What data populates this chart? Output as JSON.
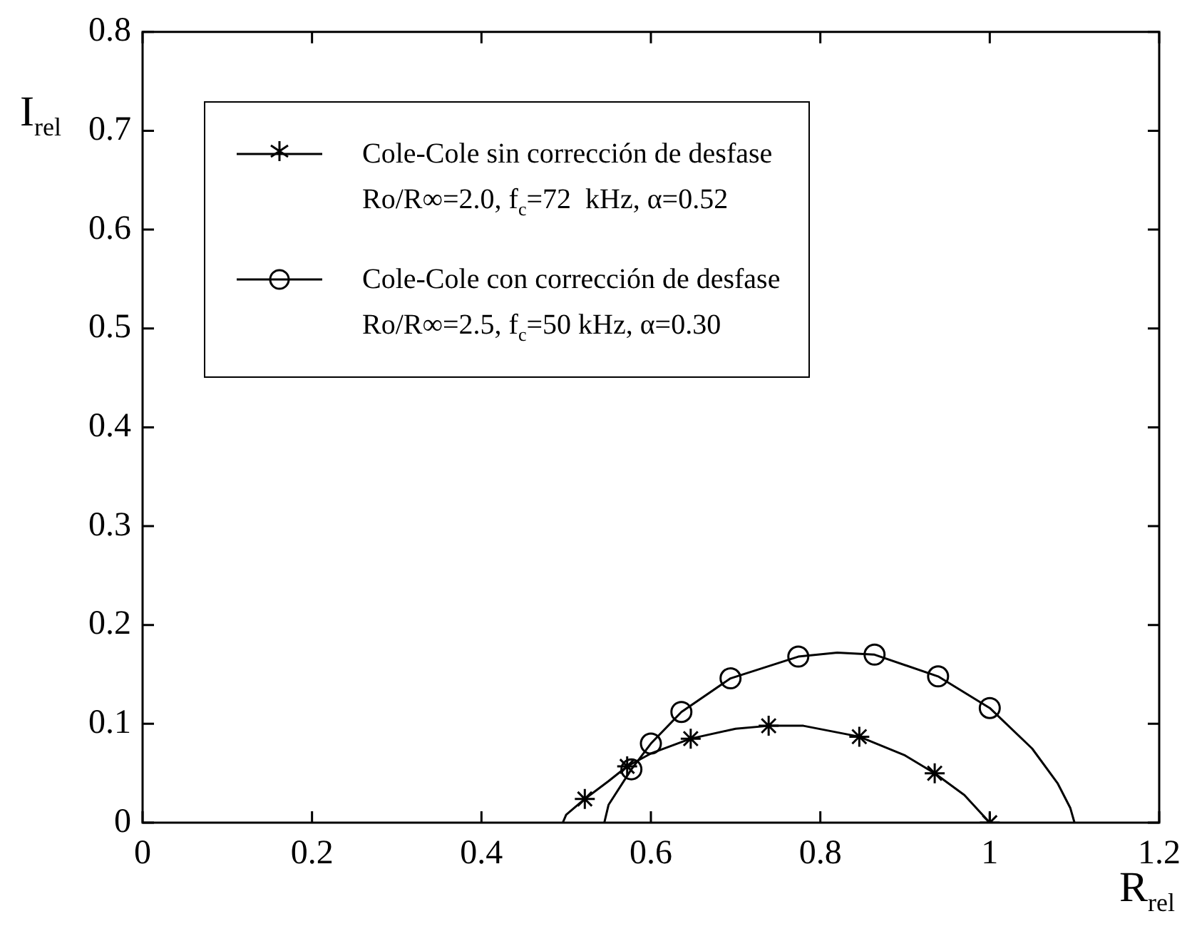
{
  "chart_data": {
    "type": "line",
    "xlabel": "R$_{rel}$",
    "ylabel": "I$_{rel}$",
    "xlim": [
      0,
      1.2
    ],
    "xticks": [
      0,
      0.2,
      0.4,
      0.6,
      0.8,
      1,
      1.2
    ],
    "ylim": [
      0,
      0.8
    ],
    "yticks": [
      0,
      0.1,
      0.2,
      0.3,
      0.4,
      0.5,
      0.6,
      0.7,
      0.8
    ],
    "legend": "top left",
    "series": [
      {
        "color": "#000000",
        "marker": "none",
        "x": [
          0.496,
          0.5,
          0.522,
          0.55,
          0.572,
          0.6,
          0.647,
          0.7,
          0.739,
          0.78,
          0.846,
          0.9,
          0.935,
          0.97,
          1.0
        ],
        "values": [
          0,
          0.008,
          0.024,
          0.042,
          0.057,
          0.07,
          0.085,
          0.095,
          0.098,
          0.098,
          0.087,
          0.068,
          0.05,
          0.028,
          0
        ]
      },
      {
        "color": "#000000",
        "marker": "none",
        "x": [
          0.545,
          0.55,
          0.577,
          0.6,
          0.636,
          0.694,
          0.774,
          0.82,
          0.864,
          0.939,
          1.0,
          1.05,
          1.08,
          1.095,
          1.1
        ],
        "values": [
          0,
          0.018,
          0.054,
          0.08,
          0.112,
          0.146,
          0.168,
          0.172,
          0.17,
          0.148,
          0.116,
          0.075,
          0.04,
          0.015,
          0
        ]
      },
      {
        "type": "scatter",
        "name": "Cole-Cole sin corrección de desfase\nRo/R∞=2.0, f$_{c}$=72  kHz, α=0.52",
        "color": "#000000",
        "marker": "cross",
        "x": [
          0.522,
          0.572,
          0.647,
          0.739,
          0.846,
          0.935,
          1.0
        ],
        "values": [
          0.024,
          0.057,
          0.085,
          0.098,
          0.087,
          0.05,
          0
        ]
      },
      {
        "type": "scatter",
        "name": "Cole-Cole con corrección de desfase\nRo/R∞=2.5, f$_{c}$=50 kHz, α=0.30",
        "color": "#000000",
        "marker": "circle",
        "x": [
          0.577,
          0.6,
          0.636,
          0.694,
          0.774,
          0.864,
          0.939,
          1.0
        ],
        "values": [
          0.054,
          0.08,
          0.112,
          0.146,
          0.168,
          0.17,
          0.148,
          0.116
        ]
      }
    ]
  }
}
